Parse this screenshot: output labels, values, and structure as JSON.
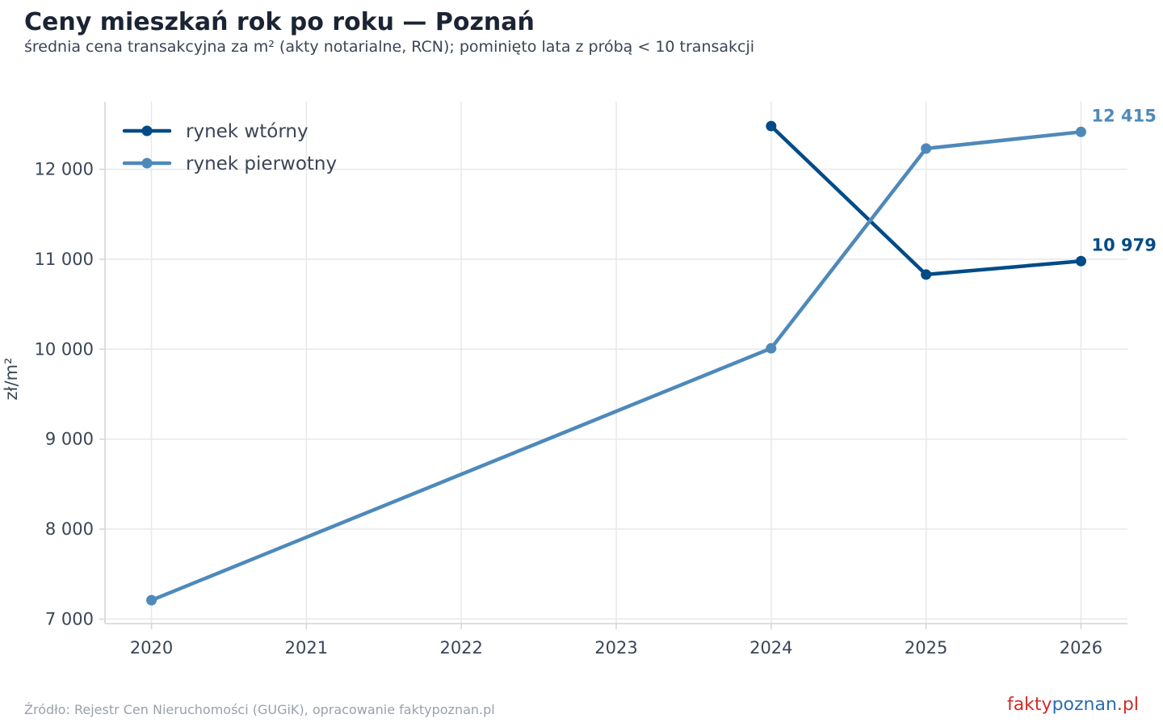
{
  "title": "Ceny mieszkań rok po roku — Poznań",
  "subtitle": "średnia cena transakcyjna za m² (akty notarialne, RCN); pominięto lata z próbą < 10 transakcji",
  "source": "Źródło: Rejestr Cen Nieruchomości (GUGiK), opracowanie faktypoznan.pl",
  "logo": {
    "part1": "fakty",
    "part2": "poznan",
    "part3": ".pl"
  },
  "colors": {
    "secondary": "#004b87",
    "primary": "#4e89ba",
    "grid": "#e6e8eb",
    "axis": "#d0d4d9",
    "text": "#3a4555"
  },
  "chart_data": {
    "type": "line",
    "title": "Ceny mieszkań rok po roku — Poznań",
    "subtitle": "średnia cena transakcyjna za m² (akty notarialne, RCN); pominięto lata z próbą < 10 transakcji",
    "xlabel": "",
    "ylabel": "zł/m²",
    "x": [
      2020,
      2021,
      2022,
      2023,
      2024,
      2025,
      2026
    ],
    "xticks": [
      "2020",
      "2021",
      "2022",
      "2023",
      "2024",
      "2025",
      "2026"
    ],
    "xlim": [
      2019.7,
      2026.3
    ],
    "ylim": [
      6950,
      12750
    ],
    "yticks": [
      7000,
      8000,
      9000,
      10000,
      11000,
      12000
    ],
    "ytick_labels": [
      "7 000",
      "8 000",
      "9 000",
      "10 000",
      "11 000",
      "12 000"
    ],
    "grid": true,
    "legend_position": "top-left",
    "series": [
      {
        "name": "rynek wtórny",
        "color": "#004b87",
        "points": [
          [
            2024,
            12480
          ],
          [
            2025,
            10830
          ],
          [
            2026,
            10979
          ]
        ],
        "end_label": "10 979"
      },
      {
        "name": "rynek pierwotny",
        "color": "#4e89ba",
        "points": [
          [
            2020,
            7210
          ],
          [
            2024,
            10010
          ],
          [
            2025,
            12230
          ],
          [
            2026,
            12415
          ]
        ],
        "end_label": "12 415"
      }
    ]
  }
}
